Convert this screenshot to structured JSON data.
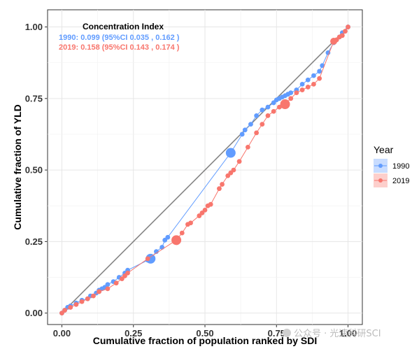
{
  "chart_data": {
    "type": "scatter",
    "xlabel": "Cumulative fraction of population ranked by SDI",
    "ylabel": "Cumulative fraction of YLD",
    "xlim": [
      -0.05,
      1.05
    ],
    "ylim": [
      -0.04,
      1.06
    ],
    "x_ticks": [
      0.0,
      0.25,
      0.5,
      0.75,
      1.0
    ],
    "x_tick_labels": [
      "0.00",
      "0.25",
      "0.50",
      "0.75",
      "1.00"
    ],
    "y_ticks": [
      0.0,
      0.25,
      0.5,
      0.75,
      1.0
    ],
    "y_tick_labels": [
      "0.00",
      "0.25",
      "0.50",
      "0.75",
      "1.00"
    ],
    "grid": true,
    "legend": {
      "title": "Year",
      "position": "right",
      "entries": [
        {
          "label": "1990",
          "color": "#619CFF"
        },
        {
          "label": "2019",
          "color": "#F8766D"
        }
      ]
    },
    "annotation": {
      "title": "Concentration Index",
      "lines": [
        {
          "text": "1990: 0.099 (95%CI  0.035 , 0.162 )",
          "color": "#619CFF"
        },
        {
          "text": "2019: 0.158 (95%CI  0.143 , 0.174 )",
          "color": "#F8766D"
        }
      ]
    },
    "equality_line": {
      "x": [
        0,
        1
      ],
      "y": [
        0,
        1
      ],
      "color": "#7f7f7f"
    },
    "series": [
      {
        "name": "1990",
        "color": "#619CFF",
        "x": [
          0.0,
          0.01,
          0.02,
          0.03,
          0.05,
          0.07,
          0.09,
          0.1,
          0.12,
          0.13,
          0.14,
          0.15,
          0.16,
          0.18,
          0.2,
          0.22,
          0.23,
          0.3,
          0.31,
          0.33,
          0.35,
          0.36,
          0.37,
          0.59,
          0.63,
          0.64,
          0.66,
          0.68,
          0.7,
          0.72,
          0.74,
          0.75,
          0.76,
          0.77,
          0.78,
          0.79,
          0.8,
          0.82,
          0.84,
          0.86,
          0.88,
          0.9,
          0.91,
          0.93,
          0.95,
          0.97,
          0.98,
          1.0
        ],
        "y": [
          0.0,
          0.01,
          0.02,
          0.025,
          0.035,
          0.045,
          0.05,
          0.06,
          0.07,
          0.08,
          0.085,
          0.09,
          0.1,
          0.11,
          0.125,
          0.14,
          0.15,
          0.185,
          0.19,
          0.215,
          0.23,
          0.255,
          0.265,
          0.56,
          0.625,
          0.64,
          0.66,
          0.69,
          0.71,
          0.72,
          0.735,
          0.745,
          0.75,
          0.755,
          0.76,
          0.765,
          0.77,
          0.78,
          0.8,
          0.815,
          0.83,
          0.845,
          0.865,
          0.91,
          0.945,
          0.965,
          0.98,
          1.0
        ],
        "sizes": [
          1,
          1,
          1,
          1,
          1,
          1,
          1,
          1,
          1,
          1,
          1,
          1,
          1,
          1,
          1,
          1,
          1,
          1,
          3,
          1,
          1,
          1,
          1,
          3,
          1,
          1,
          1,
          1,
          1,
          1,
          1,
          1,
          1,
          1,
          1,
          1,
          1,
          1,
          1,
          1,
          1,
          1,
          1,
          1,
          1,
          1,
          1,
          1
        ]
      },
      {
        "name": "2019",
        "color": "#F8766D",
        "x": [
          0.0,
          0.01,
          0.03,
          0.05,
          0.07,
          0.09,
          0.11,
          0.13,
          0.16,
          0.19,
          0.21,
          0.22,
          0.23,
          0.3,
          0.4,
          0.42,
          0.44,
          0.45,
          0.48,
          0.49,
          0.5,
          0.51,
          0.52,
          0.55,
          0.56,
          0.58,
          0.59,
          0.6,
          0.62,
          0.65,
          0.68,
          0.7,
          0.72,
          0.74,
          0.76,
          0.77,
          0.78,
          0.8,
          0.82,
          0.84,
          0.86,
          0.88,
          0.9,
          0.95,
          0.96,
          0.97,
          0.98,
          0.99,
          1.0
        ],
        "y": [
          0.0,
          0.01,
          0.02,
          0.03,
          0.04,
          0.05,
          0.06,
          0.075,
          0.085,
          0.105,
          0.12,
          0.13,
          0.14,
          0.19,
          0.255,
          0.28,
          0.31,
          0.315,
          0.34,
          0.35,
          0.36,
          0.375,
          0.38,
          0.435,
          0.45,
          0.48,
          0.49,
          0.5,
          0.53,
          0.58,
          0.63,
          0.66,
          0.69,
          0.705,
          0.72,
          0.725,
          0.73,
          0.75,
          0.77,
          0.78,
          0.79,
          0.8,
          0.82,
          0.95,
          0.955,
          0.965,
          0.97,
          0.985,
          1.0
        ],
        "sizes": [
          1,
          1,
          1,
          1,
          1,
          1,
          1,
          1,
          1,
          1,
          1,
          1,
          1,
          1,
          3,
          1,
          1,
          1,
          1,
          1,
          1,
          1,
          1,
          1,
          1,
          1,
          1,
          1,
          1,
          1,
          1,
          1,
          1,
          1,
          1,
          1,
          3,
          1,
          1,
          1,
          1,
          1,
          1,
          2,
          1,
          1,
          1,
          1,
          1
        ]
      }
    ]
  },
  "watermark": "公众号 · 光速科研SCI"
}
